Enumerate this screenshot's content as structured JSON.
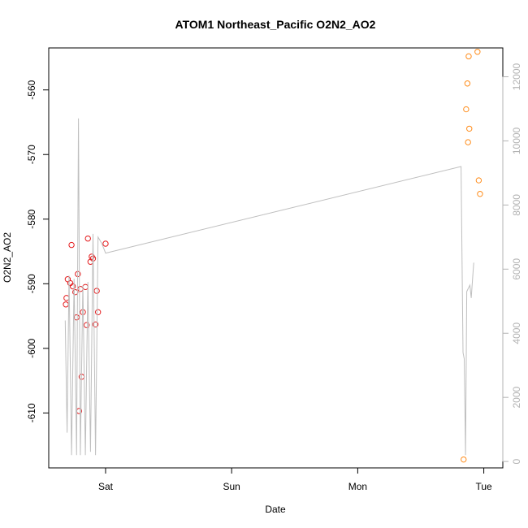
{
  "chart_data": {
    "type": "scatter",
    "title": "ATOM1 Northeast_Pacific O2N2_AO2",
    "xlabel": "Date",
    "ylabel": "O2N2_AO2",
    "x_ticks": [
      {
        "label": "Sat",
        "day": 1.0
      },
      {
        "label": "Sun",
        "day": 2.0
      },
      {
        "label": "Mon",
        "day": 3.0
      },
      {
        "label": "Tue",
        "day": 4.0
      }
    ],
    "xlim": [
      0.62,
      4.08
    ],
    "ylim": [
      -618.5,
      -553.5
    ],
    "y_ticks": [
      -560,
      -570,
      -580,
      -590,
      -600,
      -610
    ],
    "y2lim": [
      -200,
      12900
    ],
    "y2_ticks": [
      0,
      2000,
      4000,
      6000,
      8000,
      10000,
      12000
    ],
    "colors": {
      "red": "#e41a1c",
      "orange": "#ff8c1a",
      "line": "#bfbfbf",
      "axis2": "#b3b3b3"
    },
    "series": [
      {
        "color": "red",
        "points": [
          {
            "day": 0.685,
            "value": -593.2
          },
          {
            "day": 0.69,
            "value": -592.2
          },
          {
            "day": 0.7,
            "value": -589.3
          },
          {
            "day": 0.72,
            "value": -589.9
          },
          {
            "day": 0.73,
            "value": -584.0
          },
          {
            "day": 0.74,
            "value": -590.4
          },
          {
            "day": 0.76,
            "value": -591.3
          },
          {
            "day": 0.77,
            "value": -595.2
          },
          {
            "day": 0.78,
            "value": -588.5
          },
          {
            "day": 0.79,
            "value": -609.7
          },
          {
            "day": 0.8,
            "value": -590.8
          },
          {
            "day": 0.81,
            "value": -604.4
          },
          {
            "day": 0.82,
            "value": -594.4
          },
          {
            "day": 0.84,
            "value": -590.5
          },
          {
            "day": 0.85,
            "value": -596.4
          },
          {
            "day": 0.86,
            "value": -583.0
          },
          {
            "day": 0.88,
            "value": -586.6
          },
          {
            "day": 0.89,
            "value": -585.8
          },
          {
            "day": 0.9,
            "value": -586.1
          },
          {
            "day": 0.92,
            "value": -596.3
          },
          {
            "day": 0.93,
            "value": -591.1
          },
          {
            "day": 0.94,
            "value": -594.4
          },
          {
            "day": 1.0,
            "value": -583.8
          }
        ]
      },
      {
        "color": "orange",
        "points": [
          {
            "day": 3.84,
            "value": -617.2
          },
          {
            "day": 3.86,
            "value": -563.0
          },
          {
            "day": 3.87,
            "value": -559.0
          },
          {
            "day": 3.875,
            "value": -568.1
          },
          {
            "day": 3.88,
            "value": -554.8
          },
          {
            "day": 3.885,
            "value": -566.0
          },
          {
            "day": 3.95,
            "value": -554.1
          },
          {
            "day": 3.96,
            "value": -574.0
          },
          {
            "day": 3.97,
            "value": -576.1
          }
        ]
      },
      {
        "type": "line",
        "color": "line",
        "axis": "right",
        "points": [
          {
            "day": 0.68,
            "value": 4400
          },
          {
            "day": 0.695,
            "value": 900
          },
          {
            "day": 0.71,
            "value": 5800
          },
          {
            "day": 0.73,
            "value": 200
          },
          {
            "day": 0.75,
            "value": 5700
          },
          {
            "day": 0.77,
            "value": 200
          },
          {
            "day": 0.785,
            "value": 10700
          },
          {
            "day": 0.8,
            "value": 200
          },
          {
            "day": 0.82,
            "value": 5500
          },
          {
            "day": 0.84,
            "value": 200
          },
          {
            "day": 0.86,
            "value": 5600
          },
          {
            "day": 0.88,
            "value": 300
          },
          {
            "day": 0.9,
            "value": 7100
          },
          {
            "day": 0.92,
            "value": 200
          },
          {
            "day": 0.94,
            "value": 7000
          },
          {
            "day": 0.97,
            "value": 6800
          },
          {
            "day": 1.0,
            "value": 6500
          },
          {
            "day": 3.82,
            "value": 9200
          },
          {
            "day": 3.835,
            "value": 3400
          },
          {
            "day": 3.845,
            "value": 3200
          },
          {
            "day": 3.855,
            "value": 200
          },
          {
            "day": 3.865,
            "value": 5300
          },
          {
            "day": 3.89,
            "value": 5500
          },
          {
            "day": 3.9,
            "value": 5100
          },
          {
            "day": 3.92,
            "value": 6200
          }
        ]
      }
    ]
  }
}
